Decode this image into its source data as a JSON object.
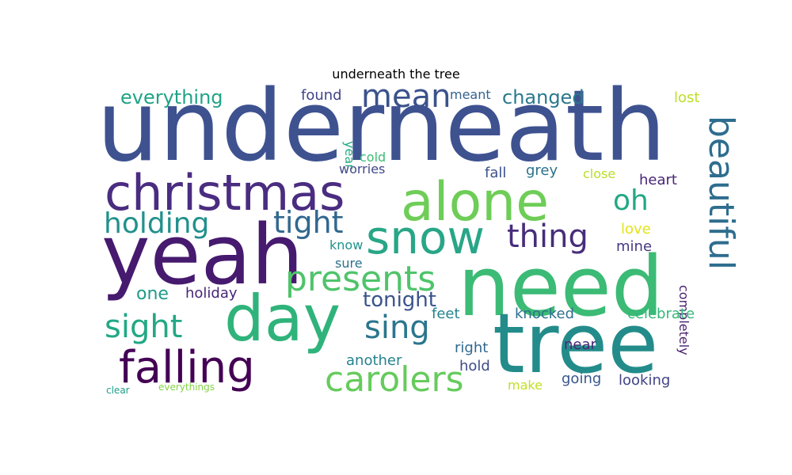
{
  "title": "underneath the tree",
  "words": [
    {
      "text": "underneath",
      "color": "#3e5290"
    },
    {
      "text": "yeah",
      "color": "#461a6e"
    },
    {
      "text": "need",
      "color": "#3bbb75"
    },
    {
      "text": "tree",
      "color": "#238c8a"
    },
    {
      "text": "day",
      "color": "#2fb37b"
    },
    {
      "text": "alone",
      "color": "#6ecd57"
    },
    {
      "text": "christmas",
      "color": "#4a2c80"
    },
    {
      "text": "snow",
      "color": "#28a687"
    },
    {
      "text": "falling",
      "color": "#440154"
    },
    {
      "text": "beautiful",
      "color": "#2e6d8e"
    },
    {
      "text": "presents",
      "color": "#4fc46a"
    },
    {
      "text": "carolers",
      "color": "#66cb5d"
    },
    {
      "text": "mean",
      "color": "#3b528b"
    },
    {
      "text": "thing",
      "color": "#472d7b"
    },
    {
      "text": "sing",
      "color": "#2a768e"
    },
    {
      "text": "sight",
      "color": "#22a884"
    },
    {
      "text": "tight",
      "color": "#31688e"
    },
    {
      "text": "holding",
      "color": "#21918c"
    },
    {
      "text": "oh",
      "color": "#22a884"
    },
    {
      "text": "tonight",
      "color": "#3a538b"
    },
    {
      "text": "everything",
      "color": "#20a386"
    },
    {
      "text": "changed",
      "color": "#2a788e"
    },
    {
      "text": "one",
      "color": "#1f9a8a"
    },
    {
      "text": "holiday",
      "color": "#482677"
    },
    {
      "text": "worries",
      "color": "#3f4889"
    },
    {
      "text": "found",
      "color": "#414487"
    },
    {
      "text": "meant",
      "color": "#33638d"
    },
    {
      "text": "lost",
      "color": "#bddf26"
    },
    {
      "text": "cold",
      "color": "#3dbc74"
    },
    {
      "text": "year",
      "color": "#27ad81"
    },
    {
      "text": "fall",
      "color": "#3b528b"
    },
    {
      "text": "grey",
      "color": "#2c728e"
    },
    {
      "text": "close",
      "color": "#b8de29"
    },
    {
      "text": "heart",
      "color": "#482475"
    },
    {
      "text": "completely",
      "color": "#481f70"
    },
    {
      "text": "love",
      "color": "#e2e418"
    },
    {
      "text": "mine",
      "color": "#443983"
    },
    {
      "text": "know",
      "color": "#20928c"
    },
    {
      "text": "sure",
      "color": "#2d708e"
    },
    {
      "text": "feet",
      "color": "#25848e"
    },
    {
      "text": "knocked",
      "color": "#2d708e"
    },
    {
      "text": "celebrate",
      "color": "#35b779"
    },
    {
      "text": "right",
      "color": "#31688e"
    },
    {
      "text": "near",
      "color": "#482878"
    },
    {
      "text": "another",
      "color": "#26828e"
    },
    {
      "text": "hold",
      "color": "#3e4a89"
    },
    {
      "text": "going",
      "color": "#39568c"
    },
    {
      "text": "looking",
      "color": "#414487"
    },
    {
      "text": "make",
      "color": "#c2df23"
    },
    {
      "text": "clear",
      "color": "#1f9e89"
    },
    {
      "text": "everythings",
      "color": "#86d549"
    }
  ]
}
